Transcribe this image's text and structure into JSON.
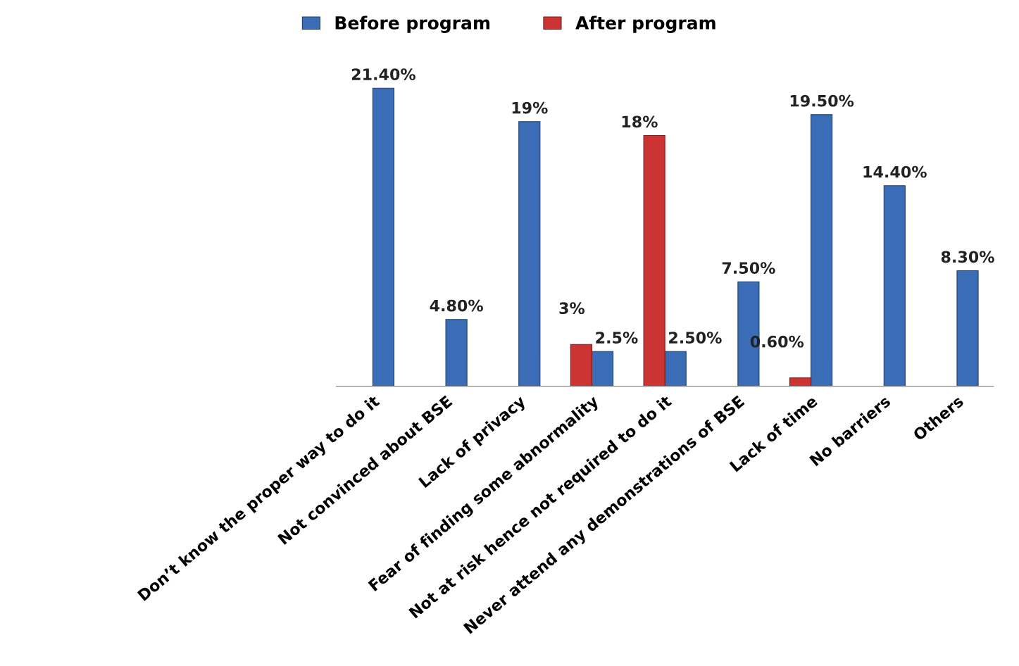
{
  "chart_data": {
    "type": "bar",
    "categories": [
      "Don’t know the proper way to do it",
      "Not convinced about BSE",
      "Lack of privacy",
      "Fear of finding some abnormality",
      "Not at risk hence not required to do it",
      "Never attend any demonstrations of BSE",
      "Lack of time",
      "No barriers",
      "Others"
    ],
    "series": [
      {
        "name": "Before program",
        "color": "#3a6db5",
        "values": [
          21.4,
          4.8,
          19,
          2.5,
          2.5,
          7.5,
          19.5,
          14.4,
          8.3
        ],
        "value_labels": [
          "21.40%",
          "4.80%",
          "19%",
          "2.5%",
          "2.50%",
          "7.50%",
          "19.50%",
          "14.40%",
          "8.30%"
        ]
      },
      {
        "name": "After program",
        "color": "#cc3333",
        "values": [
          null,
          null,
          null,
          3,
          18,
          null,
          0.6,
          null,
          null
        ],
        "value_labels": [
          null,
          null,
          null,
          "3%",
          "18%",
          null,
          "0.60%",
          null,
          null
        ]
      }
    ],
    "legend": "top",
    "grid": false
  }
}
